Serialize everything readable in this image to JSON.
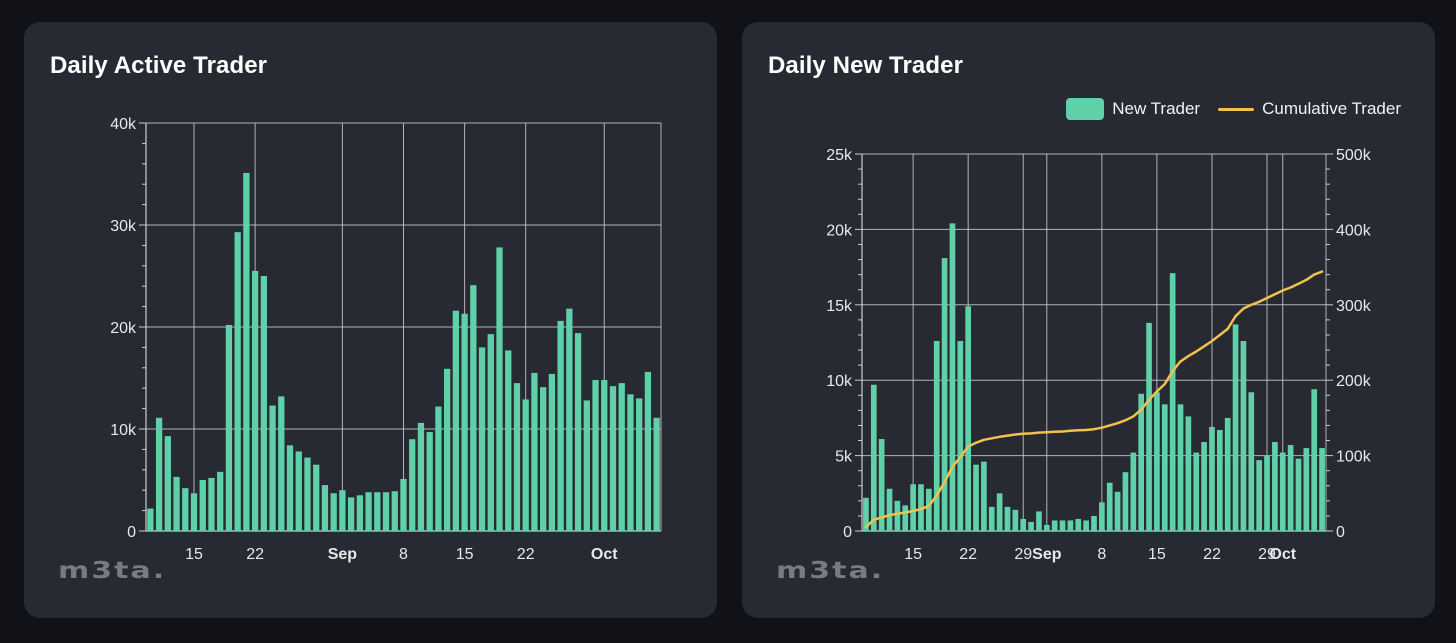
{
  "colors": {
    "bar": "#5fd0a8",
    "line": "#f2c14e",
    "grid": "#c9ccd1",
    "axis_text": "#e8e8e8",
    "card": "#272a33",
    "page": "#101217"
  },
  "watermark_text": "m3ta.",
  "chart_data": [
    {
      "type": "bar",
      "title": "Daily Active Trader",
      "xlabel": "",
      "ylabel": "",
      "ylim": [
        0,
        40000
      ],
      "y_ticks": [
        "0",
        "10k",
        "20k",
        "30k",
        "40k"
      ],
      "x_tick_labels": [
        {
          "label": "15",
          "day": 15,
          "bold": false
        },
        {
          "label": "22",
          "day": 22,
          "bold": false
        },
        {
          "label": "Sep",
          "day": 32,
          "bold": true
        },
        {
          "label": "8",
          "day": 39,
          "bold": false
        },
        {
          "label": "15",
          "day": 46,
          "bold": false
        },
        {
          "label": "22",
          "day": 53,
          "bold": false
        },
        {
          "label": "Oct",
          "day": 62,
          "bold": true
        }
      ],
      "start_day": 10,
      "values": [
        2200,
        11100,
        9300,
        5300,
        4200,
        3700,
        5000,
        5200,
        5800,
        20200,
        29300,
        35100,
        25500,
        25000,
        12300,
        13200,
        8400,
        7800,
        7200,
        6500,
        4500,
        3700,
        4000,
        3300,
        3500,
        3800,
        3800,
        3800,
        3900,
        5100,
        9000,
        10600,
        9700,
        12200,
        15900,
        21600,
        21300,
        24100,
        18000,
        19300,
        27800,
        17700,
        14500,
        12900,
        15500,
        14100,
        15400,
        20600,
        21800,
        19400,
        12800,
        14800,
        14800,
        14200,
        14500,
        13400,
        13000,
        15600,
        11100
      ]
    },
    {
      "type": "bar",
      "title": "Daily New Trader",
      "xlabel": "",
      "ylabel": "",
      "legend": [
        "New Trader",
        "Cumulative Trader"
      ],
      "legend_position": "top-right",
      "ylim": [
        0,
        25000
      ],
      "y2lim": [
        0,
        500000
      ],
      "y_ticks": [
        "0",
        "5k",
        "10k",
        "15k",
        "20k",
        "25k"
      ],
      "y2_ticks": [
        "0",
        "100k",
        "200k",
        "300k",
        "400k",
        "500k"
      ],
      "x_tick_labels": [
        {
          "label": "15",
          "day": 15,
          "bold": false
        },
        {
          "label": "22",
          "day": 22,
          "bold": false
        },
        {
          "label": "29",
          "day": 29,
          "bold": false
        },
        {
          "label": "Sep",
          "day": 32,
          "bold": true
        },
        {
          "label": "8",
          "day": 39,
          "bold": false
        },
        {
          "label": "15",
          "day": 46,
          "bold": false
        },
        {
          "label": "22",
          "day": 53,
          "bold": false
        },
        {
          "label": "29",
          "day": 60,
          "bold": false
        },
        {
          "label": "Oct",
          "day": 62,
          "bold": true
        }
      ],
      "start_day": 9,
      "series": [
        {
          "name": "New Trader",
          "values": [
            2200,
            9700,
            6100,
            2800,
            2000,
            1700,
            3100,
            3100,
            2800,
            12600,
            18100,
            20400,
            12600,
            14900,
            4400,
            4600,
            1600,
            2500,
            1600,
            1400,
            800,
            600,
            1300,
            400,
            700,
            700,
            700,
            800,
            700,
            1000,
            1900,
            3200,
            2600,
            3900,
            5200,
            9100,
            13800,
            9200,
            8400,
            17100,
            8400,
            7600,
            5200,
            5900,
            6900,
            6700,
            7500,
            13700,
            12600,
            9200,
            4700,
            5000,
            5900,
            5200,
            5700,
            4800,
            5500,
            9400,
            5500
          ]
        },
        {
          "name": "Cumulative Trader",
          "values": [
            5000,
            15000,
            18000,
            21000,
            23000,
            24500,
            26500,
            29000,
            33000,
            47000,
            65000,
            85000,
            98000,
            112000,
            117000,
            121000,
            123000,
            125000,
            126500,
            128000,
            129000,
            129500,
            130500,
            131000,
            131500,
            132000,
            133000,
            133500,
            134000,
            135000,
            137000,
            140000,
            143000,
            147000,
            152000,
            161000,
            174000,
            185000,
            195000,
            212000,
            225000,
            232000,
            238000,
            245000,
            252000,
            260000,
            268000,
            285000,
            295000,
            300000,
            304000,
            309000,
            314000,
            319000,
            323000,
            328000,
            333000,
            340000,
            344000
          ]
        }
      ]
    }
  ]
}
